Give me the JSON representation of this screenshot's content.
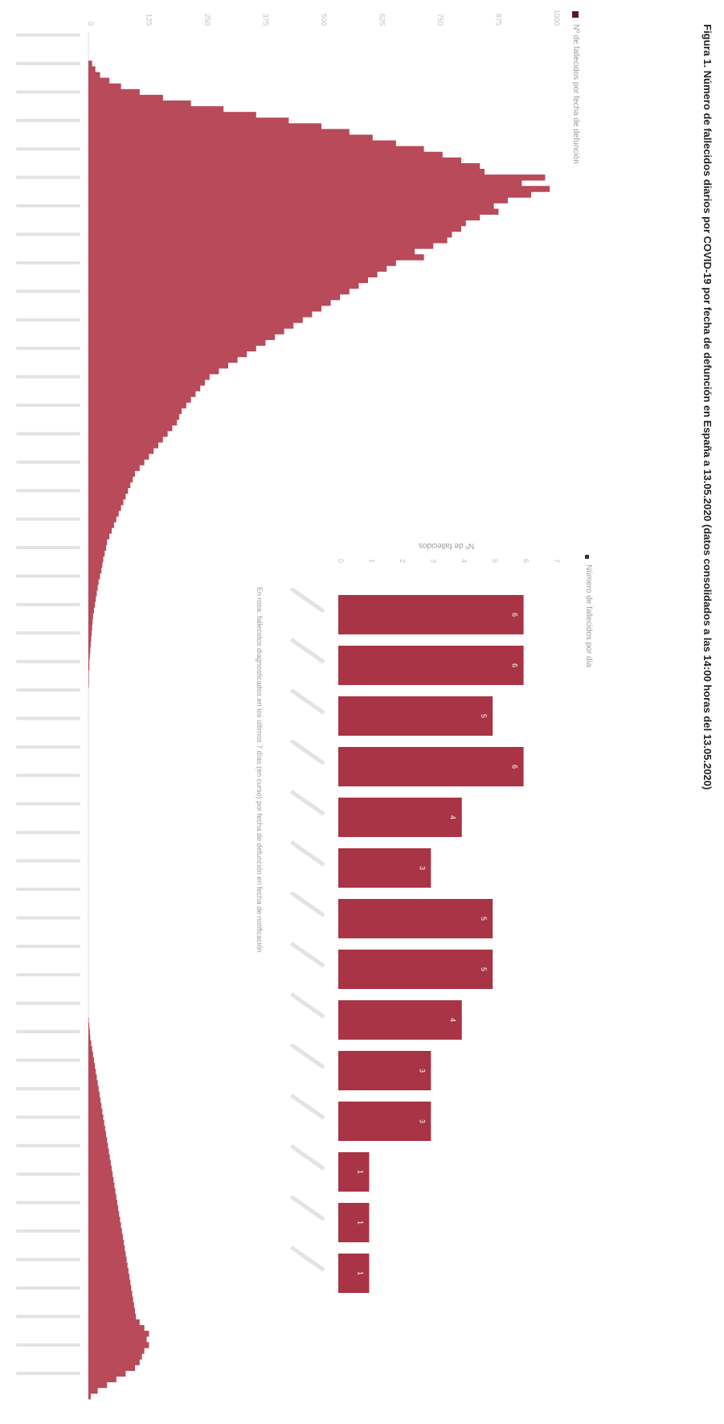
{
  "figure": {
    "title": "Figura 1. Número de fallecidos diarios por COVID-19 por fecha de defunción en España a 13.05.2020 (datos consolidados a las 14:00 horas del 13.05.2020)",
    "colors": {
      "bar": "#b84a5a",
      "inset_bar": "#a83445",
      "axis_text": "#bfbfbf",
      "title": "#222222"
    }
  },
  "chart_data": [
    {
      "type": "bar",
      "title": "",
      "legend": {
        "label": "Nº de fallecidos por fecha de defunción",
        "position": "top"
      },
      "xlabel": "",
      "ylabel": "",
      "ylim": [
        0,
        1000
      ],
      "y_ticks": [
        0,
        125,
        250,
        375,
        500,
        625,
        750,
        875,
        1000
      ],
      "grid": false,
      "num_days": 240,
      "x_tick_every": 5,
      "segments": [
        {
          "from": 0,
          "to": 4,
          "values": [
            0,
            0,
            0,
            0,
            0
          ]
        },
        {
          "from": 5,
          "to": 25,
          "values": [
            8,
            15,
            25,
            45,
            70,
            110,
            160,
            220,
            290,
            360,
            430,
            500,
            560,
            610,
            660,
            720,
            760,
            800,
            840,
            850,
            980
          ]
        },
        {
          "from": 26,
          "to": 60,
          "values": [
            930,
            990,
            950,
            900,
            870,
            880,
            840,
            810,
            800,
            780,
            770,
            740,
            700,
            720,
            660,
            640,
            620,
            600,
            580,
            560,
            540,
            520,
            500,
            480,
            460,
            440,
            420,
            400,
            380,
            360,
            340,
            320,
            300,
            280,
            260
          ]
        },
        {
          "from": 61,
          "to": 110,
          "values": [
            250,
            240,
            230,
            220,
            210,
            200,
            195,
            190,
            180,
            170,
            160,
            150,
            140,
            130,
            120,
            110,
            100,
            95,
            90,
            85,
            80,
            75,
            70,
            65,
            60,
            55,
            50,
            45,
            40,
            38,
            35,
            32,
            30,
            28,
            25,
            22,
            20,
            18,
            16,
            14,
            12,
            10,
            9,
            8,
            7,
            6,
            5,
            4,
            3,
            2
          ]
        },
        {
          "from": 111,
          "to": 172,
          "values": [
            2,
            1,
            1,
            1,
            0,
            0,
            0,
            0,
            0,
            0,
            0,
            0,
            0,
            0,
            0,
            0,
            0,
            0,
            0,
            0,
            0,
            0,
            0,
            0,
            0,
            0,
            0,
            0,
            0,
            0,
            0,
            0,
            0,
            0,
            0,
            0,
            0,
            0,
            0,
            0,
            0,
            0,
            0,
            0,
            0,
            0,
            0,
            0,
            0,
            0,
            0,
            0,
            0,
            0,
            0,
            0,
            0,
            0,
            0,
            0,
            0,
            0
          ]
        },
        {
          "from": 173,
          "to": 239,
          "values": [
            1,
            2,
            3,
            4,
            6,
            8,
            10,
            12,
            14,
            16,
            18,
            20,
            22,
            24,
            26,
            28,
            30,
            32,
            34,
            36,
            38,
            40,
            42,
            44,
            46,
            48,
            50,
            52,
            54,
            56,
            58,
            60,
            62,
            64,
            66,
            68,
            70,
            72,
            74,
            76,
            78,
            80,
            82,
            84,
            86,
            88,
            90,
            92,
            94,
            96,
            98,
            100,
            102,
            110,
            120,
            130,
            125,
            130,
            120,
            115,
            110,
            100,
            80,
            60,
            40,
            20,
            5
          ]
        }
      ]
    },
    {
      "type": "bar",
      "title": "",
      "legend": {
        "label": "Número de fallecidos por día",
        "position": "top"
      },
      "xlabel": "",
      "ylabel": "Nº de fallecidos",
      "footnote": "En rosa: fallecidos diagnosticados en los últimos 7 días (en curso) por fecha de defunción en fecha de notificación",
      "ylim": [
        0,
        7
      ],
      "y_ticks": [
        0,
        1,
        2,
        3,
        4,
        5,
        6,
        7
      ],
      "grid": false,
      "categories": [
        "",
        "",
        "",
        "",
        "",
        "",
        "",
        "",
        "",
        "",
        "",
        "",
        "",
        ""
      ],
      "values": [
        6,
        6,
        5,
        6,
        4,
        3,
        5,
        5,
        4,
        3,
        3,
        1,
        1,
        1
      ],
      "labels": [
        "6",
        "6",
        "5",
        "6",
        "4",
        "3",
        "5",
        "5",
        "4",
        "3",
        "3",
        "1",
        "1",
        "1"
      ]
    }
  ]
}
